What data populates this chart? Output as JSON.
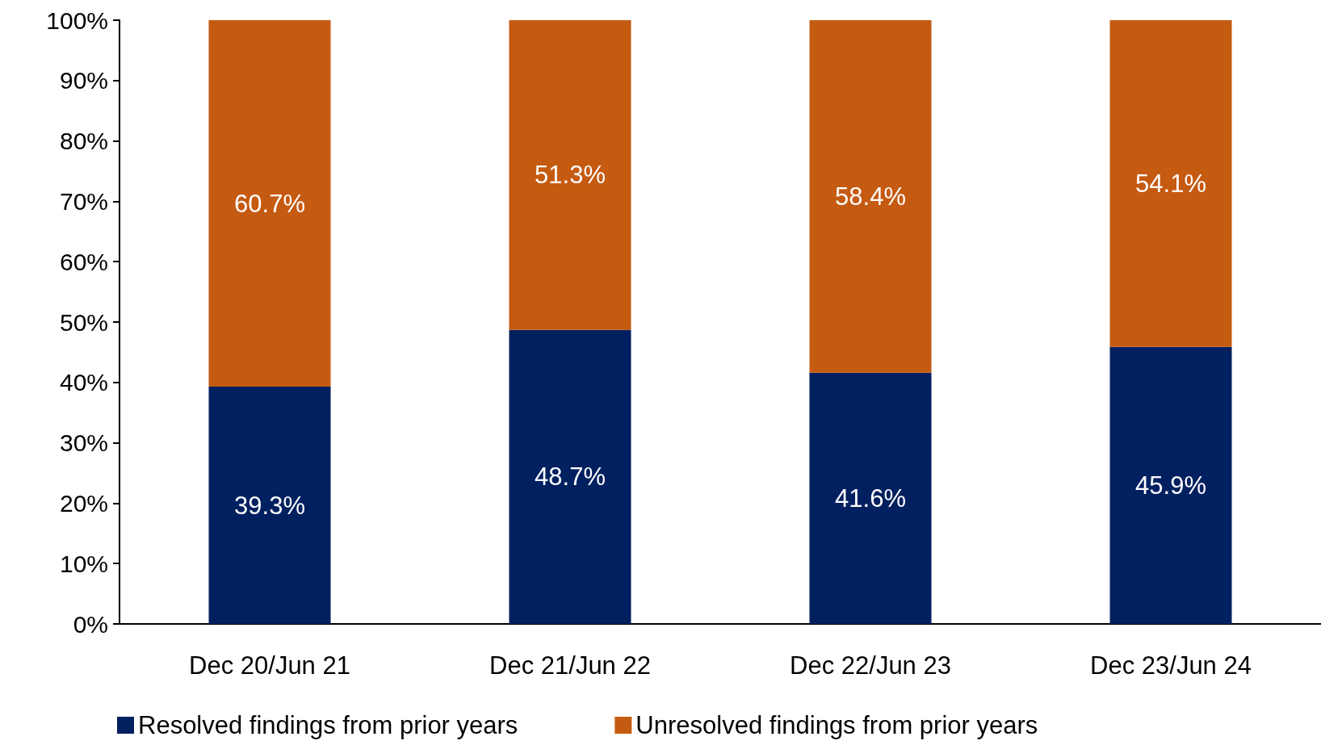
{
  "chart_data": {
    "type": "bar",
    "stacked": true,
    "categories": [
      "Dec 20/Jun 21",
      "Dec 21/Jun 22",
      "Dec 22/Jun 23",
      "Dec 23/Jun 24"
    ],
    "series": [
      {
        "name": "Resolved findings from prior years",
        "color": "#002060",
        "values": [
          39.3,
          48.7,
          41.6,
          45.9
        ],
        "value_labels": [
          "39.3%",
          "48.7%",
          "41.6%",
          "45.9%"
        ]
      },
      {
        "name": "Unresolved findings from prior years",
        "color": "#c55a11",
        "values": [
          60.7,
          51.3,
          58.4,
          54.1
        ],
        "value_labels": [
          "60.7%",
          "51.3%",
          "58.4%",
          "54.1%"
        ]
      }
    ],
    "ylim": [
      0,
      100
    ],
    "yticks": [
      {
        "value": 0,
        "label": "0%"
      },
      {
        "value": 10,
        "label": "10%"
      },
      {
        "value": 20,
        "label": "20%"
      },
      {
        "value": 30,
        "label": "30%"
      },
      {
        "value": 40,
        "label": "40%"
      },
      {
        "value": 50,
        "label": "50%"
      },
      {
        "value": 60,
        "label": "60%"
      },
      {
        "value": 70,
        "label": "70%"
      },
      {
        "value": 80,
        "label": "80%"
      },
      {
        "value": 90,
        "label": "90%"
      },
      {
        "value": 100,
        "label": "100%"
      }
    ],
    "grid": false,
    "legend": "bottom"
  }
}
